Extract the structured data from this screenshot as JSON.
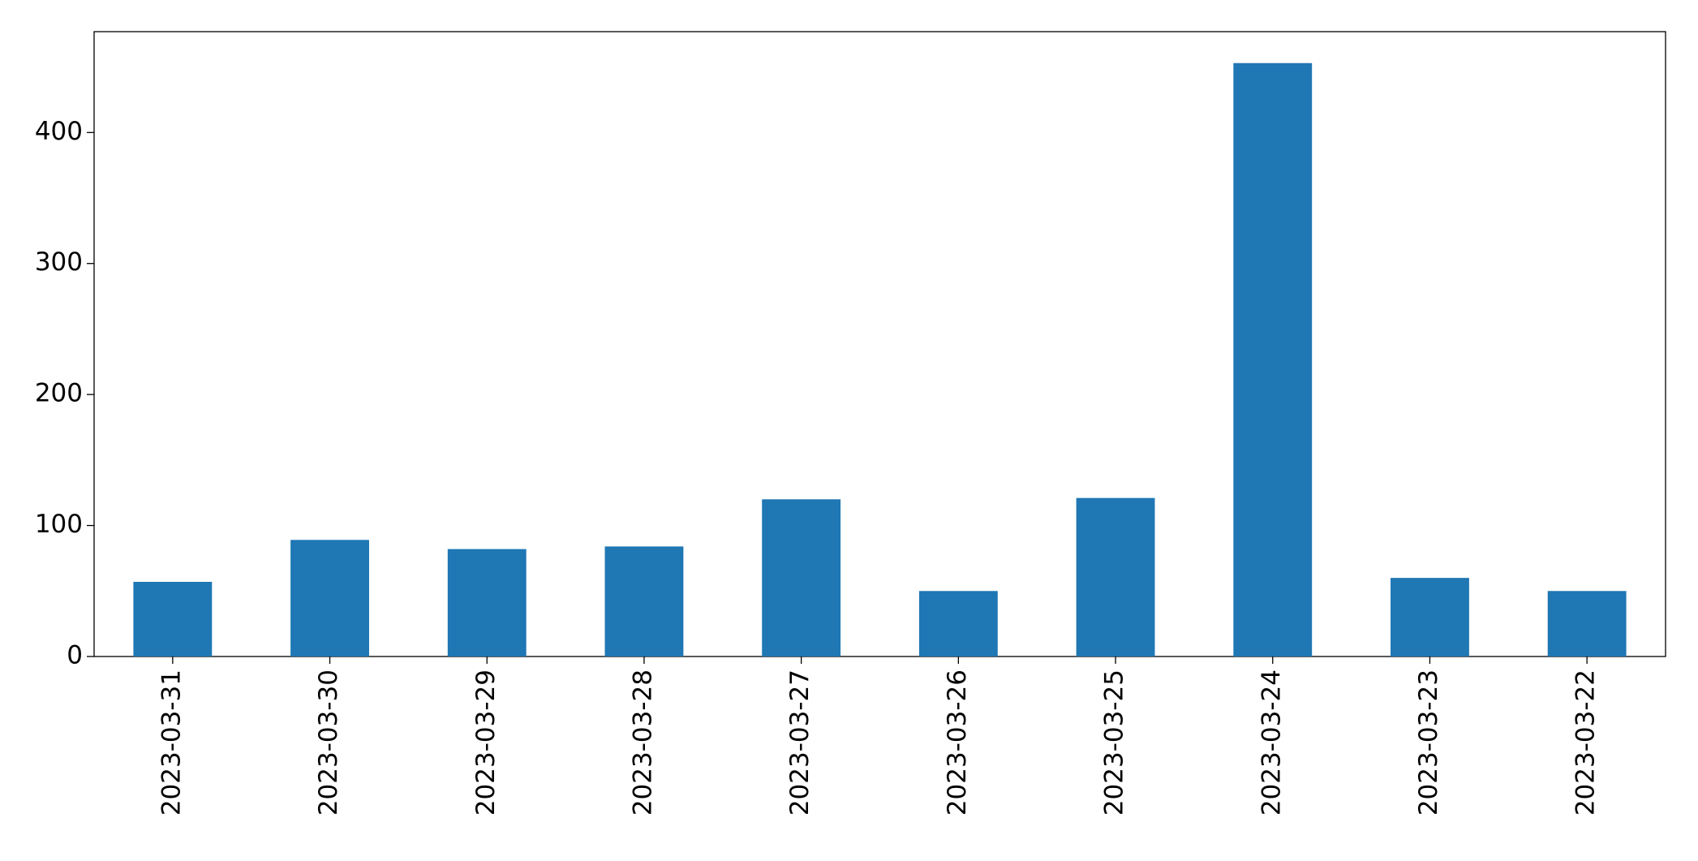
{
  "chart_data": {
    "type": "bar",
    "categories": [
      "2023-03-31",
      "2023-03-30",
      "2023-03-29",
      "2023-03-28",
      "2023-03-27",
      "2023-03-26",
      "2023-03-25",
      "2023-03-24",
      "2023-03-23",
      "2023-03-22"
    ],
    "values": [
      57,
      89,
      82,
      84,
      120,
      50,
      121,
      453,
      60,
      50
    ],
    "color": "#1f77b4",
    "ylim": [
      0,
      477
    ],
    "yticks": [
      0,
      100,
      200,
      300,
      400
    ],
    "grid": false
  }
}
